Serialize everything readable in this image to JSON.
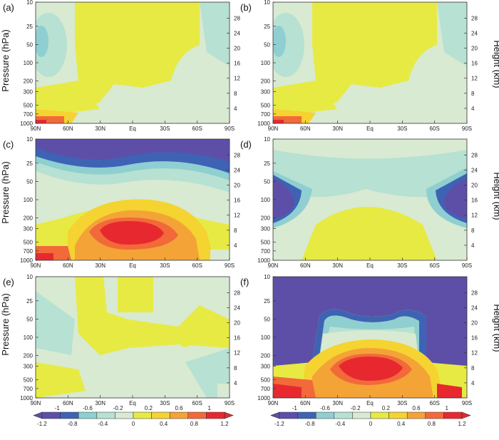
{
  "figure": {
    "left_axis_label": "Pressure (hPa)",
    "right_axis_label": "Height (km)"
  },
  "colors": {
    "levels": [
      "#5d4fa8",
      "#3e63b4",
      "#8fcfd1",
      "#b7e1d2",
      "#d8ead1",
      "#e7ea43",
      "#f5d331",
      "#f4a337",
      "#f2693a",
      "#e7292f"
    ]
  },
  "chart_data": [
    {
      "type": "contour",
      "panel_label": "(a)",
      "field": "weak",
      "show_left_axis": true,
      "show_right_axis": true,
      "show_x_ticks": true
    },
    {
      "type": "contour",
      "panel_label": "(b)",
      "field": "weak",
      "show_left_axis": false,
      "show_right_axis": true,
      "show_x_ticks": true
    },
    {
      "type": "contour",
      "panel_label": "(c)",
      "field": "warm_trop_cool_strat",
      "show_left_axis": true,
      "show_right_axis": true,
      "show_x_ticks": true
    },
    {
      "type": "contour",
      "panel_label": "(d)",
      "field": "polar_cool",
      "show_left_axis": false,
      "show_right_axis": true,
      "show_x_ticks": true
    },
    {
      "type": "contour",
      "panel_label": "(e)",
      "field": "weak_cool",
      "show_left_axis": true,
      "show_right_axis": true,
      "show_x_ticks": true
    },
    {
      "type": "contour",
      "panel_label": "(f)",
      "field": "strong",
      "show_left_axis": false,
      "show_right_axis": true,
      "show_x_ticks": true
    }
  ],
  "axes": {
    "x_ticks": [
      "90N",
      "60N",
      "30N",
      "Eq",
      "30S",
      "60S",
      "90S"
    ],
    "x_values": [
      90,
      60,
      30,
      0,
      -30,
      -60,
      -90
    ],
    "pressure_ticks": [
      "10",
      "25",
      "50",
      "100",
      "200",
      "300",
      "500",
      "700",
      "1000"
    ],
    "pressure_values": [
      10,
      25,
      50,
      100,
      200,
      300,
      500,
      700,
      1000
    ],
    "height_ticks": [
      "28",
      "24",
      "20",
      "16",
      "12",
      "8",
      "4"
    ],
    "height_values": [
      28,
      24,
      20,
      16,
      12,
      8,
      4
    ],
    "ylim_hpa": [
      1000,
      10
    ],
    "y_scale": "log"
  },
  "colorbar": {
    "top_labels": [
      "-1",
      "-0.6",
      "-0.2",
      "0.2",
      "0.6",
      "1"
    ],
    "bottom_labels": [
      "-1.2",
      "-0.8",
      "-0.4",
      "0",
      "0.4",
      "0.8",
      "1.2"
    ],
    "levels": [
      -1.2,
      -1.0,
      -0.8,
      -0.6,
      -0.4,
      -0.2,
      0,
      0.2,
      0.4,
      0.6,
      0.8,
      1.0,
      1.2
    ]
  }
}
